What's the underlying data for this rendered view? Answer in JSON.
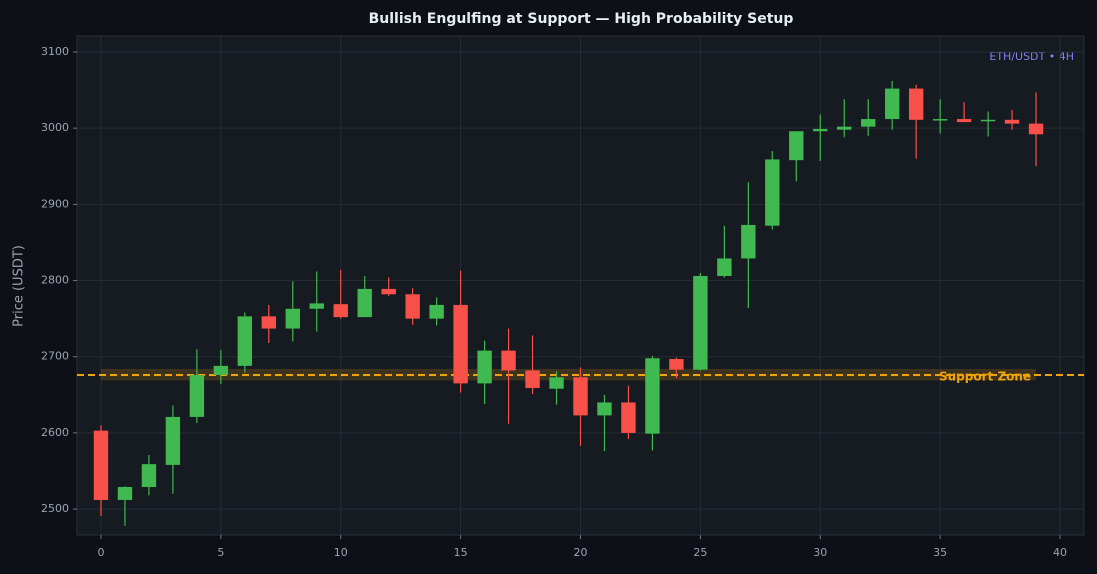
{
  "chart_data": {
    "type": "candlestick",
    "title": "Bullish Engulfing at Support — High Probability Setup",
    "y_label": "Price (USDT)",
    "annotation": "ETH/USDT • 4H",
    "support_label": "Support Zone",
    "support_level": 2676,
    "support_zone": [
      2669,
      2684
    ],
    "up_color": "#3fb950",
    "down_color": "#f85149",
    "support_color": "#f0a30a",
    "grid": true,
    "x": [
      0,
      1,
      2,
      3,
      4,
      5,
      6,
      7,
      8,
      9,
      10,
      11,
      12,
      13,
      14,
      15,
      16,
      17,
      18,
      19,
      20,
      21,
      22,
      23,
      24,
      25,
      26,
      27,
      28,
      29,
      30,
      31,
      32,
      33,
      34,
      35,
      36,
      37,
      38,
      39
    ],
    "open": [
      2603,
      2512,
      2529,
      2558,
      2621,
      2676,
      2688,
      2753,
      2737,
      2763,
      2769,
      2752,
      2789,
      2782,
      2750,
      2768,
      2665,
      2708,
      2682,
      2658,
      2673,
      2623,
      2640,
      2599,
      2697,
      2683,
      2806,
      2829,
      2872,
      2958,
      2996,
      2998,
      3002,
      3012,
      3052,
      3011,
      3012,
      3009,
      3011,
      3006
    ],
    "high": [
      2610,
      2530,
      2571,
      2636,
      2710,
      2709,
      2758,
      2768,
      2799,
      2812,
      2814,
      2806,
      2804,
      2790,
      2778,
      2813,
      2721,
      2737,
      2728,
      2681,
      2686,
      2650,
      2662,
      2701,
      2699,
      2810,
      2872,
      2929,
      2970,
      2996,
      3018,
      3038,
      3038,
      3062,
      3057,
      3038,
      3034,
      3022,
      3024,
      3047
    ],
    "low": [
      2491,
      2478,
      2518,
      2520,
      2613,
      2664,
      2679,
      2718,
      2720,
      2733,
      2750,
      2752,
      2780,
      2742,
      2741,
      2653,
      2638,
      2612,
      2651,
      2637,
      2583,
      2576,
      2592,
      2577,
      2672,
      2682,
      2804,
      2764,
      2867,
      2930,
      2957,
      2988,
      2990,
      2998,
      2960,
      2993,
      3008,
      2989,
      2998,
      2950
    ],
    "close": [
      2512,
      2529,
      2559,
      2621,
      2676,
      2688,
      2753,
      2737,
      2763,
      2770,
      2752,
      2789,
      2782,
      2750,
      2768,
      2665,
      2708,
      2682,
      2659,
      2673,
      2623,
      2640,
      2600,
      2698,
      2683,
      2806,
      2829,
      2873,
      2959,
      2996,
      2999,
      3002,
      3012,
      3052,
      3011,
      3012,
      3008,
      3011,
      3006,
      2992
    ],
    "xlim": [
      -1,
      41
    ],
    "xticks": [
      0,
      5,
      10,
      15,
      20,
      25,
      30,
      35,
      40
    ],
    "ylim": [
      2466,
      3121
    ],
    "yticks": [
      2500,
      2600,
      2700,
      2800,
      2900,
      3000,
      3100
    ]
  }
}
